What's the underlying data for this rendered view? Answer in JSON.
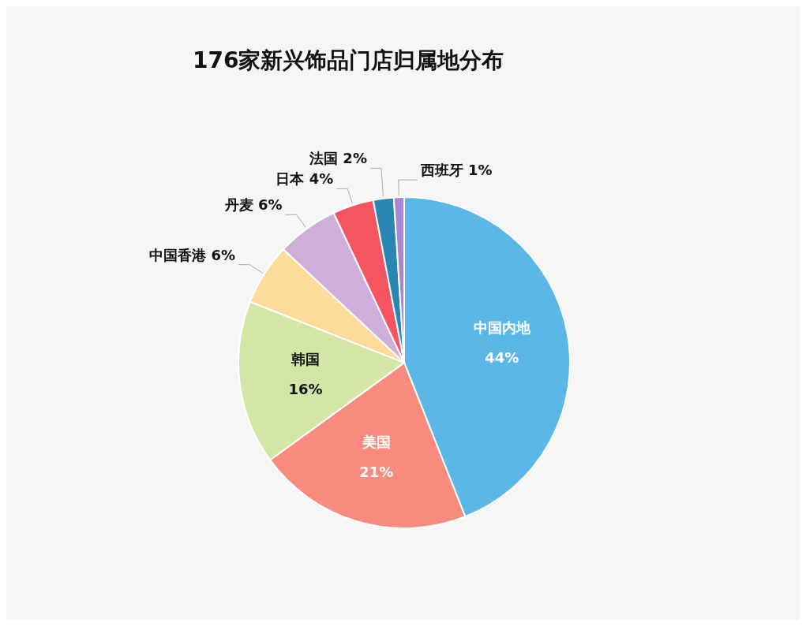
{
  "chart_data": {
    "type": "pie",
    "title": "176家新兴饰品门店归属地分布",
    "categories": [
      "中国内地",
      "美国",
      "韩国",
      "中国香港",
      "丹麦",
      "日本",
      "法国",
      "西班牙"
    ],
    "values": [
      44,
      21,
      16,
      6,
      6,
      4,
      2,
      1
    ],
    "value_labels": [
      "44%",
      "21%",
      "16%",
      "6%",
      "6%",
      "4%",
      "2%",
      "1%"
    ],
    "colors": [
      "#5bb8e6",
      "#f98b7e",
      "#d4e6a5",
      "#fddb99",
      "#cfaed9",
      "#f55560",
      "#2a86b3",
      "#a585d8"
    ],
    "legend": false
  }
}
